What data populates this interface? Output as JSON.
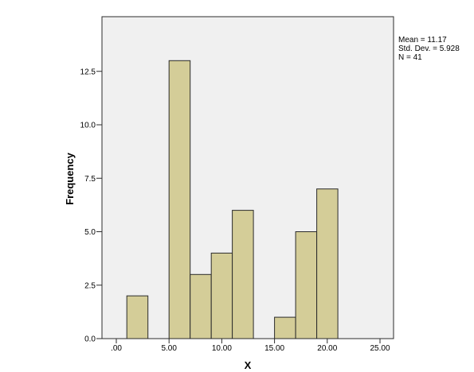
{
  "chart_data": {
    "type": "bar",
    "subtype": "histogram",
    "xlabel": "X",
    "ylabel": "Frequency",
    "xlim": [
      0,
      25
    ],
    "ylim": [
      0,
      15
    ],
    "x_ticks": [
      0,
      5,
      10,
      15,
      20,
      25
    ],
    "x_tick_labels": [
      ".00",
      "5.00",
      "10.00",
      "15.00",
      "20.00",
      "25.00"
    ],
    "y_ticks": [
      0,
      2.5,
      5,
      7.5,
      10,
      12.5
    ],
    "y_tick_labels": [
      "0.0",
      "2.5",
      "5.0",
      "7.5",
      "10.0",
      "12.5"
    ],
    "bins": [
      {
        "start": 1.0,
        "end": 3.0,
        "count": 2
      },
      {
        "start": 3.0,
        "end": 5.0,
        "count": 0
      },
      {
        "start": 5.0,
        "end": 7.0,
        "count": 13
      },
      {
        "start": 7.0,
        "end": 9.0,
        "count": 3
      },
      {
        "start": 9.0,
        "end": 11.0,
        "count": 4
      },
      {
        "start": 11.0,
        "end": 13.0,
        "count": 6
      },
      {
        "start": 13.0,
        "end": 15.0,
        "count": 0
      },
      {
        "start": 15.0,
        "end": 17.0,
        "count": 1
      },
      {
        "start": 17.0,
        "end": 19.0,
        "count": 5
      },
      {
        "start": 19.0,
        "end": 21.0,
        "count": 7
      }
    ],
    "stats": {
      "mean": "Mean = 11.17",
      "std": "Std. Dev. = 5.928",
      "n": "N = 41"
    },
    "grid": false,
    "colors": {
      "bar_fill": "#d4cd98",
      "bar_stroke": "#2b2b2b",
      "plot_bg": "#f0f0f0"
    }
  }
}
